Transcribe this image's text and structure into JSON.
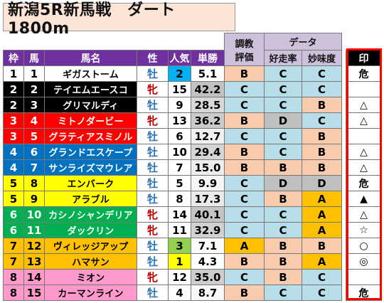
{
  "title": "新潟5R新馬戦　ダート1800m",
  "header": {
    "training_label_1": "調教",
    "training_label_2": "評価",
    "data_label": "データ",
    "col_waku": "枠",
    "col_uma": "馬",
    "col_name": "馬名",
    "col_sex": "性",
    "col_pop": "人気",
    "col_odds": "単勝",
    "col_good": "好走率",
    "col_tasty": "妙味度",
    "col_mark": "印"
  },
  "colors": {
    "waku": {
      "1": "#ffffff",
      "2": "#000000",
      "3": "#ff0000",
      "4": "#0070c0",
      "5": "#ffff00",
      "6": "#00b050",
      "7": "#ffc000",
      "8": "#ff99cc"
    },
    "waku_text": {
      "1": "#000000",
      "2": "#ffffff",
      "3": "#ffffff",
      "4": "#ffffff",
      "5": "#000000",
      "6": "#ffffff",
      "7": "#000000",
      "8": "#000000"
    },
    "eval": {
      "A": "#ffc000",
      "B": "#f8cbad",
      "C": "#b7dee8",
      "D": "#bfbfbf"
    },
    "pop_top": {
      "1": "#ffff00",
      "2": "#00b0f0",
      "3": "#92d050"
    },
    "odds_low": "#ffffff",
    "odds_high": "#bfbfbf"
  },
  "rows": [
    {
      "waku": "1",
      "uma": "1",
      "name": "ギガストーム",
      "sex": "牡",
      "pop": "2",
      "odds": "5.1",
      "train": "B",
      "good": "C",
      "tasty": "C",
      "mark": "危"
    },
    {
      "waku": "2",
      "uma": "2",
      "name": "テイエムエースコ",
      "sex": "牝",
      "pop": "15",
      "odds": "42.2",
      "train": "C",
      "good": "C",
      "tasty": "C",
      "mark": ""
    },
    {
      "waku": "2",
      "uma": "3",
      "name": "グリマルディ",
      "sex": "牡",
      "pop": "9",
      "odds": "28.5",
      "train": "C",
      "good": "C",
      "tasty": "B",
      "mark": "△"
    },
    {
      "waku": "3",
      "uma": "4",
      "name": "ミトノダービー",
      "sex": "牝",
      "pop": "13",
      "odds": "36.2",
      "train": "B",
      "good": "D",
      "tasty": "C",
      "mark": "△"
    },
    {
      "waku": "3",
      "uma": "5",
      "name": "グラティアスミノル",
      "sex": "牡",
      "pop": "6",
      "odds": "12.7",
      "train": "C",
      "good": "C",
      "tasty": "B",
      "mark": ""
    },
    {
      "waku": "4",
      "uma": "6",
      "name": "グランドエスケープ",
      "sex": "牡",
      "pop": "10",
      "odds": "29.4",
      "train": "B",
      "good": "C",
      "tasty": "B",
      "mark": "△"
    },
    {
      "waku": "4",
      "uma": "7",
      "name": "サンライズマウレア",
      "sex": "牡",
      "pop": "7",
      "odds": "15.0",
      "train": "B",
      "good": "B",
      "tasty": "B",
      "mark": "△"
    },
    {
      "waku": "5",
      "uma": "8",
      "name": "エンバーク",
      "sex": "牡",
      "pop": "5",
      "odds": "9.9",
      "train": "C",
      "good": "D",
      "tasty": "D",
      "mark": "危"
    },
    {
      "waku": "5",
      "uma": "9",
      "name": "アラブル",
      "sex": "牡",
      "pop": "8",
      "odds": "17.3",
      "train": "C",
      "good": "B",
      "tasty": "A",
      "mark": "▲"
    },
    {
      "waku": "6",
      "uma": "10",
      "name": "カシノシャンデリア",
      "sex": "牝",
      "pop": "14",
      "odds": "40.1",
      "train": "C",
      "good": "C",
      "tasty": "A",
      "mark": "△"
    },
    {
      "waku": "6",
      "uma": "11",
      "name": "ダックリン",
      "sex": "牝",
      "pop": "11",
      "odds": "32.9",
      "train": "C",
      "good": "C",
      "tasty": "A",
      "mark": "☆"
    },
    {
      "waku": "7",
      "uma": "12",
      "name": "ヴィレッジアップ",
      "sex": "牡",
      "pop": "3",
      "odds": "7.1",
      "train": "A",
      "good": "B",
      "tasty": "B",
      "mark": "○"
    },
    {
      "waku": "7",
      "uma": "13",
      "name": "ハマサン",
      "sex": "牡",
      "pop": "1",
      "odds": "4.3",
      "train": "B",
      "good": "B",
      "tasty": "A",
      "mark": "◎"
    },
    {
      "waku": "8",
      "uma": "14",
      "name": "ミオン",
      "sex": "牝",
      "pop": "12",
      "odds": "35.0",
      "train": "C",
      "good": "B",
      "tasty": "C",
      "mark": ""
    },
    {
      "waku": "8",
      "uma": "15",
      "name": "カーマンライン",
      "sex": "牡",
      "pop": "4",
      "odds": "8.7",
      "train": "B",
      "good": "C",
      "tasty": "C",
      "mark": "危"
    }
  ]
}
